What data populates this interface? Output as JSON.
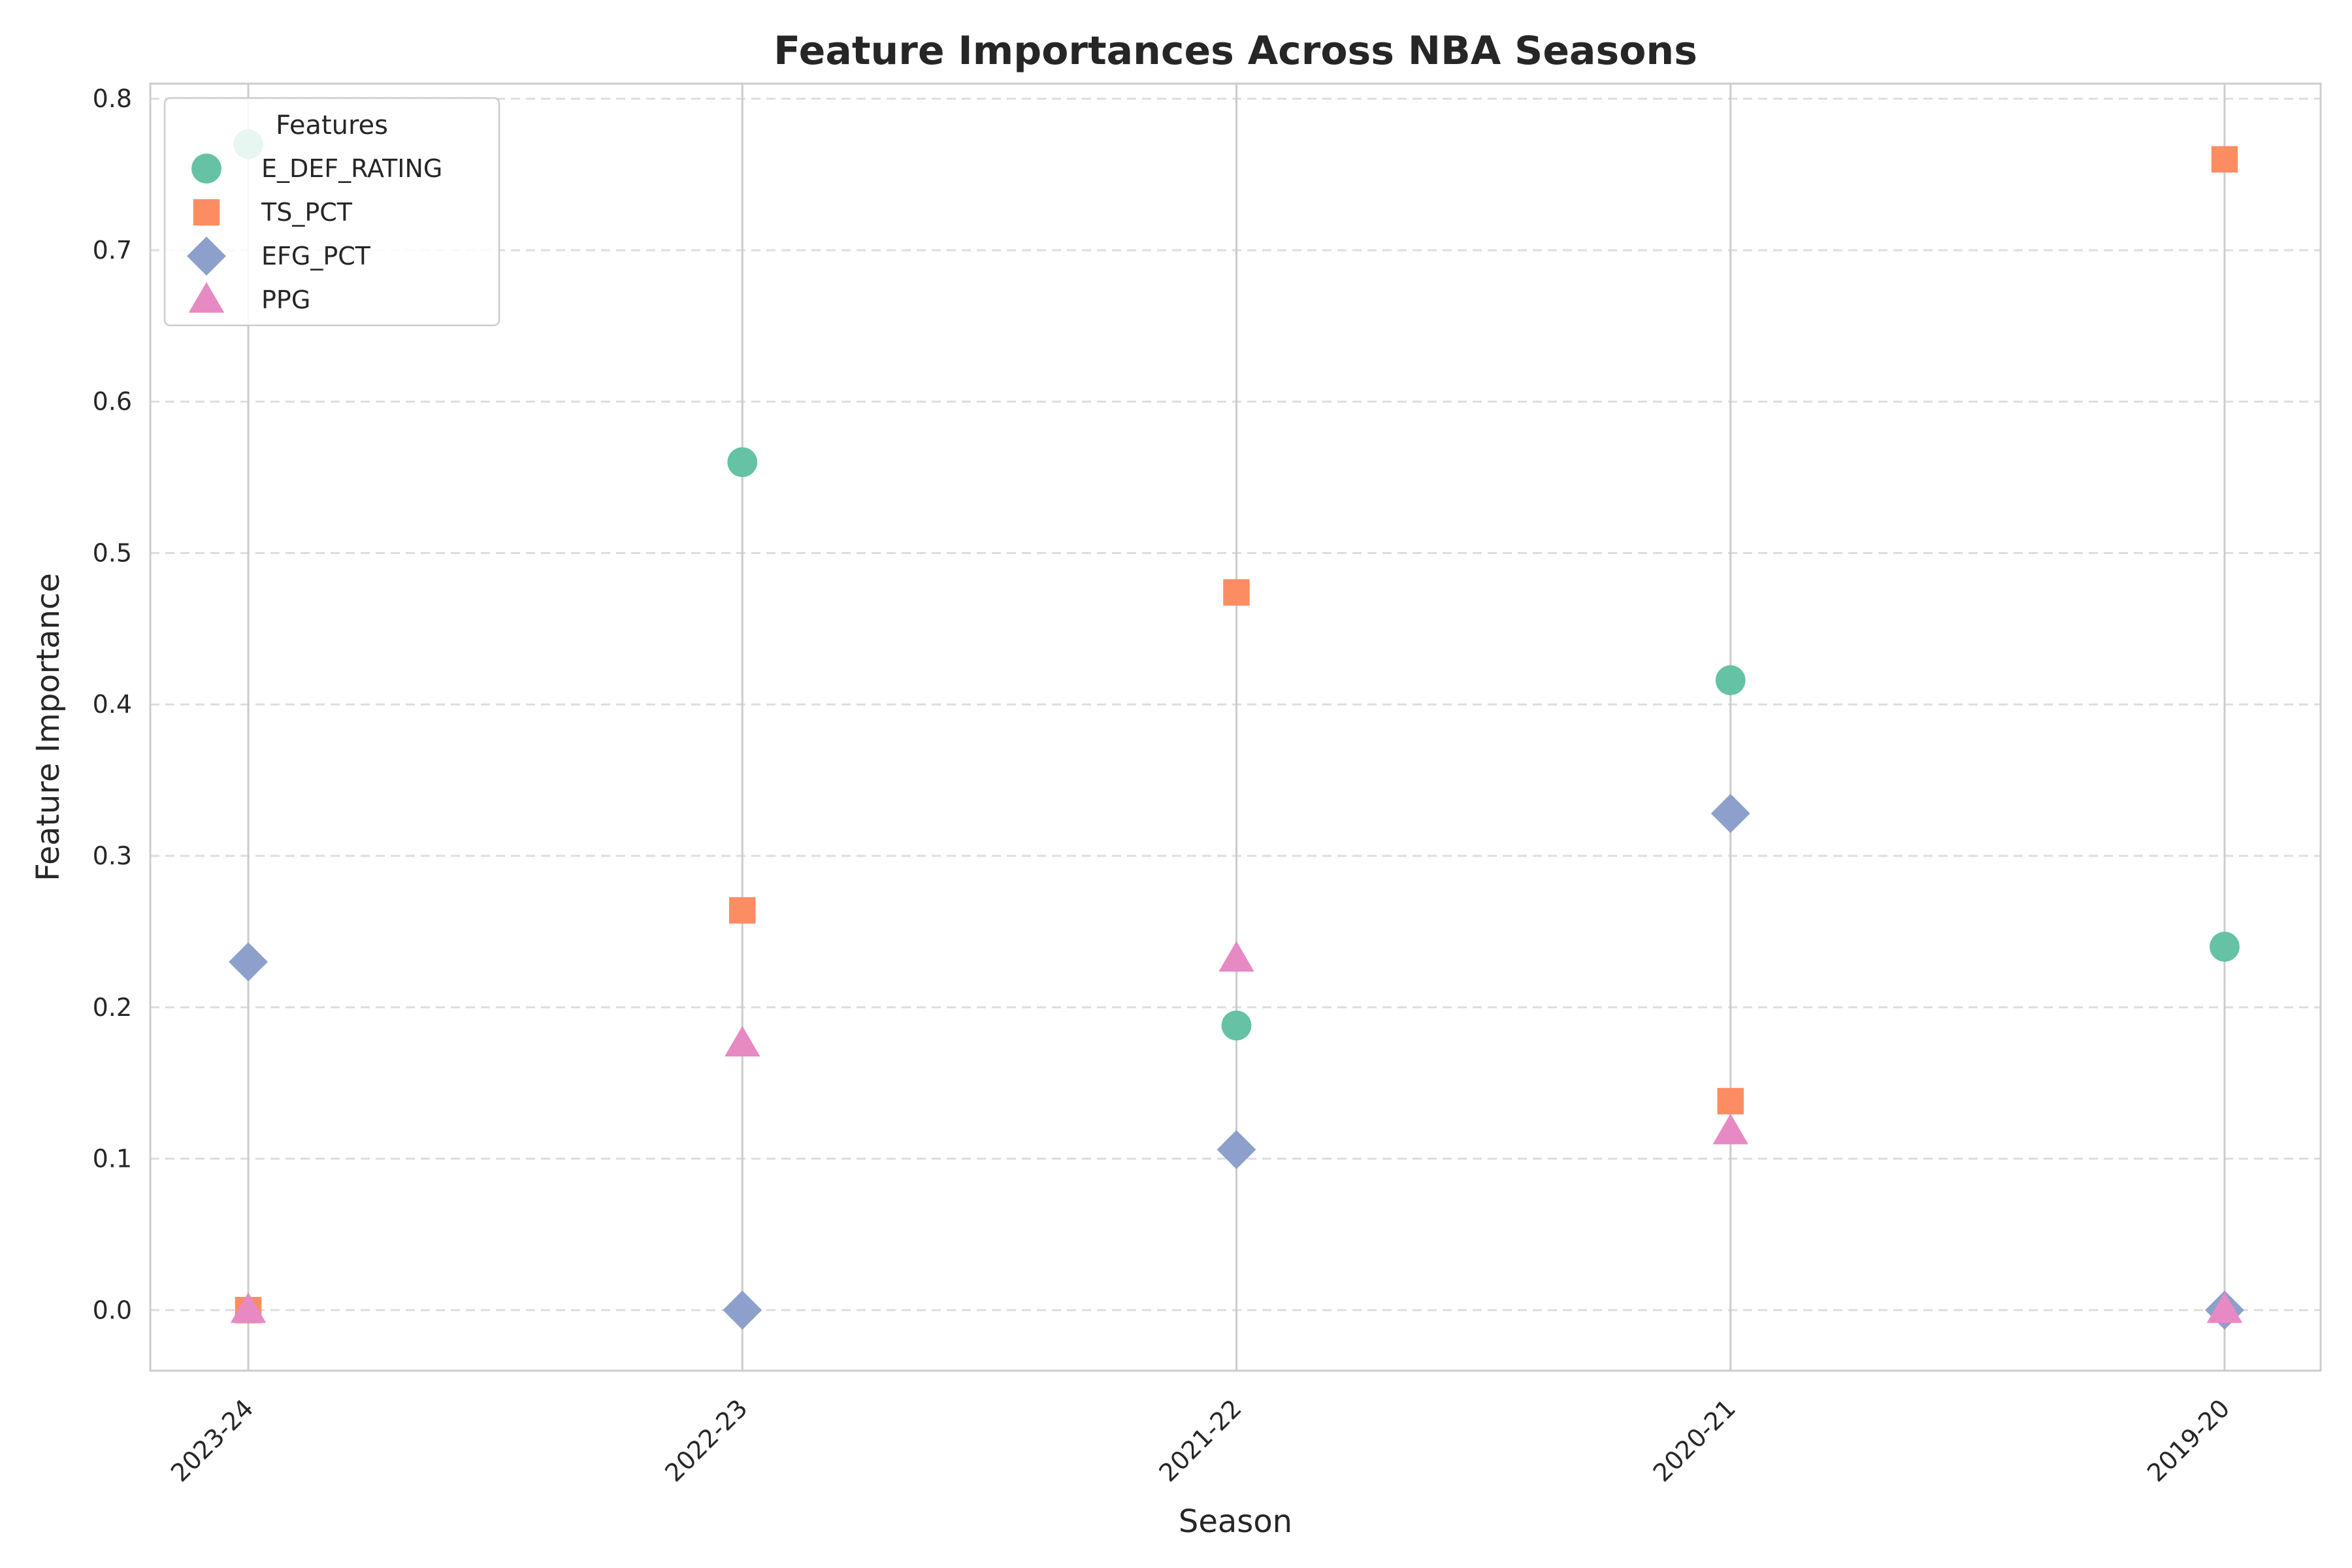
{
  "chart_data": {
    "type": "scatter",
    "title": "Feature Importances Across NBA Seasons",
    "xlabel": "Season",
    "ylabel": "Feature Importance",
    "categories": [
      "2023-24",
      "2022-23",
      "2021-22",
      "2020-21",
      "2019-20"
    ],
    "ylim": [
      -0.04,
      0.81
    ],
    "yticks": [
      "0.0",
      "0.1",
      "0.2",
      "0.3",
      "0.4",
      "0.5",
      "0.6",
      "0.7",
      "0.8"
    ],
    "grid": {
      "horizontal": "dashed",
      "vertical": "solid"
    },
    "legend": {
      "title": "Features",
      "placement": "top-left"
    },
    "series": [
      {
        "name": "E_DEF_RATING",
        "marker": "circle",
        "color": "#66c2a5",
        "values": [
          0.77,
          0.56,
          0.188,
          0.416,
          0.24
        ]
      },
      {
        "name": "TS_PCT",
        "marker": "square",
        "color": "#fc8d62",
        "values": [
          0.0,
          0.264,
          0.474,
          0.138,
          0.76
        ]
      },
      {
        "name": "EFG_PCT",
        "marker": "diamond",
        "color": "#8da0cb",
        "values": [
          0.23,
          0.0,
          0.106,
          0.328,
          0.0
        ]
      },
      {
        "name": "PPG",
        "marker": "triangle",
        "color": "#e78ac3",
        "values": [
          0.0,
          0.176,
          0.232,
          0.118,
          0.0
        ]
      }
    ]
  }
}
